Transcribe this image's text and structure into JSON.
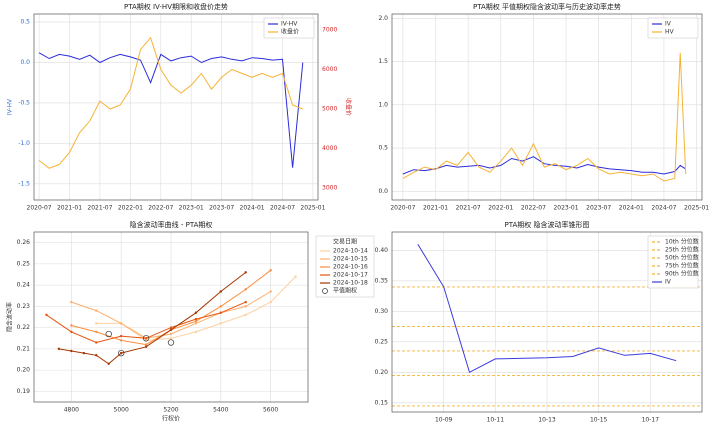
{
  "chart_data": [
    {
      "type": "line",
      "title": "PTA期权 IV-HV期限和收盘价走势",
      "ylabel": "IV-HV",
      "y2label": "收盘价",
      "x": [
        "2020-07",
        "2020-09",
        "2020-11",
        "2021-01",
        "2021-03",
        "2021-05",
        "2021-07",
        "2021-09",
        "2021-11",
        "2022-01",
        "2022-03",
        "2022-05",
        "2022-07",
        "2022-09",
        "2022-11",
        "2023-01",
        "2023-03",
        "2023-05",
        "2023-07",
        "2023-09",
        "2023-11",
        "2024-01",
        "2024-03",
        "2024-05",
        "2024-07",
        "2024-09",
        "2024-11"
      ],
      "series": [
        {
          "name": "IV-HV",
          "color": "#2b2bdc",
          "values": [
            0.12,
            0.05,
            0.1,
            0.08,
            0.04,
            0.09,
            0.0,
            0.06,
            0.1,
            0.07,
            0.03,
            -0.25,
            0.1,
            0.02,
            0.06,
            0.08,
            0.0,
            0.05,
            0.07,
            0.04,
            0.02,
            0.06,
            0.05,
            0.03,
            0.04,
            -1.3,
            0.0
          ]
        },
        {
          "name": "收盘价",
          "color": "#f5b335",
          "axis": "y2",
          "values": [
            3700,
            3500,
            3600,
            3900,
            4400,
            4700,
            5200,
            5000,
            5100,
            5500,
            6500,
            6800,
            6000,
            5600,
            5400,
            5600,
            5900,
            5500,
            5800,
            6000,
            5900,
            5800,
            5900,
            5800,
            5900,
            5100,
            5000
          ]
        }
      ],
      "ylim": [
        -1.7,
        0.6
      ],
      "yticks": [
        {
          "value": 0.5,
          "label": "0.5"
        },
        {
          "value": 0,
          "label": "0.0"
        },
        {
          "value": -0.5,
          "label": "-0.5"
        },
        {
          "value": -1,
          "label": "-1.0"
        },
        {
          "value": -1.5,
          "label": "-1.5"
        }
      ],
      "y2lim": [
        2700,
        7400
      ],
      "y2ticks": [
        3000,
        4000,
        5000,
        6000,
        7000
      ],
      "xlim": [
        "2020-06",
        "2025-02"
      ],
      "xticks": [
        "2020-07",
        "2021-01",
        "2021-07",
        "2022-01",
        "2022-07",
        "2023-01",
        "2023-07",
        "2024-01",
        "2024-07",
        "2025-01"
      ],
      "grid": true,
      "legend": "upper right"
    },
    {
      "type": "line",
      "title": "PTA期权 平值期权隐含波动率与历史波动率走势",
      "x": [
        "2020-07",
        "2020-09",
        "2020-11",
        "2021-01",
        "2021-03",
        "2021-05",
        "2021-07",
        "2021-09",
        "2021-11",
        "2022-01",
        "2022-03",
        "2022-05",
        "2022-07",
        "2022-09",
        "2022-11",
        "2023-01",
        "2023-03",
        "2023-05",
        "2023-07",
        "2023-09",
        "2023-11",
        "2024-01",
        "2024-03",
        "2024-05",
        "2024-07",
        "2024-09",
        "2024-10",
        "2024-11"
      ],
      "series": [
        {
          "name": "IV",
          "color": "#2b2bdc",
          "values": [
            0.2,
            0.25,
            0.24,
            0.26,
            0.3,
            0.28,
            0.29,
            0.3,
            0.27,
            0.3,
            0.38,
            0.35,
            0.4,
            0.32,
            0.3,
            0.29,
            0.27,
            0.31,
            0.28,
            0.26,
            0.25,
            0.24,
            0.22,
            0.22,
            0.2,
            0.23,
            0.3,
            0.26
          ]
        },
        {
          "name": "HV",
          "color": "#f5b335",
          "values": [
            0.15,
            0.22,
            0.28,
            0.25,
            0.35,
            0.3,
            0.45,
            0.28,
            0.22,
            0.35,
            0.5,
            0.3,
            0.55,
            0.28,
            0.32,
            0.25,
            0.3,
            0.38,
            0.26,
            0.2,
            0.22,
            0.2,
            0.18,
            0.2,
            0.12,
            0.15,
            1.6,
            0.2
          ]
        }
      ],
      "ylim": [
        -0.1,
        2.05
      ],
      "yticks": [
        {
          "value": 0,
          "label": "0.0"
        },
        {
          "value": 0.5,
          "label": "0.5"
        },
        {
          "value": 1,
          "label": "1.0"
        },
        {
          "value": 1.5,
          "label": "1.5"
        },
        {
          "value": 2,
          "label": "2.0"
        }
      ],
      "xlim": [
        "2020-05",
        "2025-02"
      ],
      "xticks": [
        "2020-07",
        "2021-01",
        "2021-07",
        "2022-01",
        "2022-07",
        "2023-01",
        "2023-07",
        "2024-01",
        "2024-07",
        "2025-01"
      ],
      "grid": true,
      "legend": "upper right"
    },
    {
      "type": "line",
      "title": "隐含波动率曲线 - PTA期权",
      "xlabel": "行权价",
      "ylabel": "隐含波动率",
      "legend_title": "交易日期",
      "series": [
        {
          "name": "2024-10-14",
          "color": "#fdd0a2",
          "x": [
            4900,
            5000,
            5100,
            5200,
            5300,
            5400,
            5500,
            5600,
            5700
          ],
          "values": [
            0.222,
            0.222,
            0.214,
            0.215,
            0.218,
            0.222,
            0.226,
            0.232,
            0.244
          ]
        },
        {
          "name": "2024-10-15",
          "color": "#fdae6b",
          "x": [
            4800,
            4900,
            5000,
            5100,
            5200,
            5300,
            5400,
            5500,
            5600
          ],
          "values": [
            0.232,
            0.228,
            0.222,
            0.215,
            0.217,
            0.222,
            0.227,
            0.23,
            0.237
          ]
        },
        {
          "name": "2024-10-16",
          "color": "#fd8d3c",
          "x": [
            4800,
            4900,
            5000,
            5100,
            5200,
            5300,
            5400,
            5500,
            5600
          ],
          "values": [
            0.221,
            0.218,
            0.214,
            0.212,
            0.219,
            0.223,
            0.23,
            0.238,
            0.247
          ]
        },
        {
          "name": "2024-10-17",
          "color": "#e6550d",
          "x": [
            4700,
            4800,
            4900,
            5000,
            5100,
            5200,
            5300,
            5400,
            5500
          ],
          "values": [
            0.226,
            0.218,
            0.213,
            0.216,
            0.215,
            0.22,
            0.224,
            0.227,
            0.232
          ]
        },
        {
          "name": "2024-10-18",
          "color": "#a63603",
          "x": [
            4750,
            4800,
            4850,
            4900,
            4950,
            5000,
            5100,
            5200,
            5300,
            5400,
            5500
          ],
          "values": [
            0.21,
            0.209,
            0.208,
            0.207,
            0.203,
            0.208,
            0.211,
            0.219,
            0.227,
            0.237,
            0.246
          ]
        }
      ],
      "scatter": {
        "name": "平值期权",
        "x": [
          4950,
          5000,
          5100,
          5200
        ],
        "values": [
          0.217,
          0.208,
          0.215,
          0.213
        ]
      },
      "xlim": [
        4650,
        5750
      ],
      "xticks": [
        4800,
        5000,
        5200,
        5400,
        5600
      ],
      "ylim": [
        0.185,
        0.265
      ],
      "yticks": [
        0.19,
        {
          "value": 0.2,
          "label": "0.20"
        },
        0.21,
        0.22,
        0.23,
        0.24,
        0.25,
        0.26
      ],
      "grid": true,
      "legend": "outside right"
    },
    {
      "type": "line",
      "title": "PTA期权 隐含波动率锥形图",
      "x": [
        "10-08",
        "10-09",
        "10-10",
        "10-11",
        "10-13",
        "10-14",
        "10-15",
        "10-16",
        "10-17",
        "10-18"
      ],
      "series": [
        {
          "name": "IV",
          "color": "#3b3bdd",
          "values": [
            0.41,
            0.34,
            0.2,
            0.222,
            0.224,
            0.226,
            0.24,
            0.228,
            0.231,
            0.219
          ]
        }
      ],
      "hlines": [
        {
          "name": "10th 分位数",
          "value": 0.145,
          "color": "#f5b335"
        },
        {
          "name": "25th 分位数",
          "value": 0.195,
          "color": "#f5b335"
        },
        {
          "name": "50th 分位数",
          "value": 0.235,
          "color": "#f5b335"
        },
        {
          "name": "75th 分位数",
          "value": 0.275,
          "color": "#f5b335"
        },
        {
          "name": "90th 分位数",
          "value": 0.34,
          "color": "#f5b335"
        }
      ],
      "xlim": [
        "10-07",
        "10-19"
      ],
      "xticks": [
        "10-09",
        "10-11",
        "10-13",
        "10-15",
        "10-17"
      ],
      "ylim": [
        0.135,
        0.43
      ],
      "yticks": [
        0.15,
        {
          "value": 0.2,
          "label": "0.20"
        },
        0.25,
        {
          "value": 0.3,
          "label": "0.30"
        },
        0.35,
        {
          "value": 0.4,
          "label": "0.40"
        }
      ],
      "grid": true,
      "legend": "upper right"
    }
  ]
}
